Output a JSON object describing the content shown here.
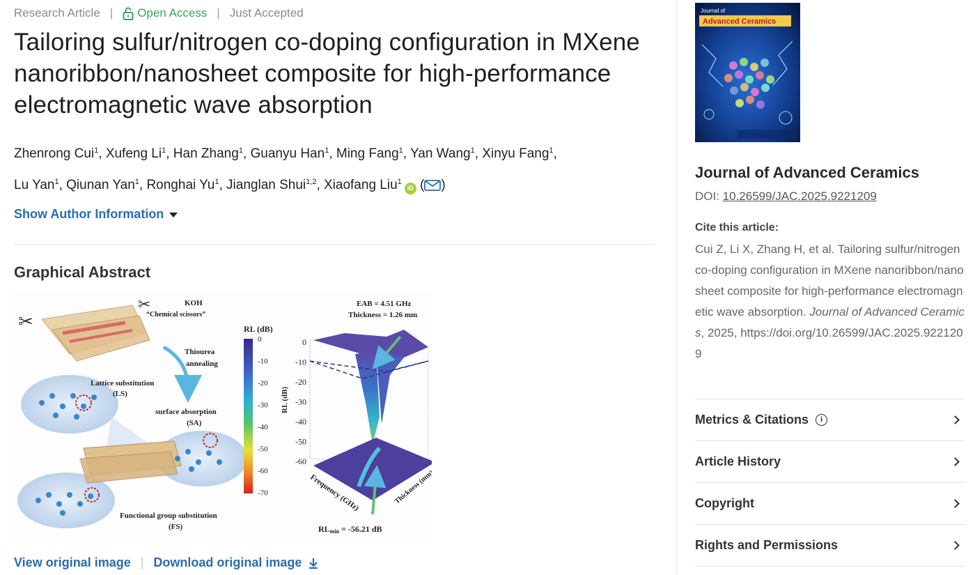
{
  "article_meta": {
    "type": "Research Article",
    "access": "Open Access",
    "status": "Just Accepted"
  },
  "title": "Tailoring sulfur/nitrogen co-doping configuration in MXene nanoribbon/nanosheet composite for high-performance electromagnetic wave absorption",
  "authors": [
    {
      "name": "Zhenrong Cui",
      "aff": "1"
    },
    {
      "name": "Xufeng Li",
      "aff": "1"
    },
    {
      "name": "Han Zhang",
      "aff": "1"
    },
    {
      "name": "Guanyu Han",
      "aff": "1"
    },
    {
      "name": "Ming Fang",
      "aff": "1"
    },
    {
      "name": "Yan Wang",
      "aff": "1"
    },
    {
      "name": "Xinyu Fang",
      "aff": "1"
    },
    {
      "name": "Lu Yan",
      "aff": "1"
    },
    {
      "name": "Qiunan Yan",
      "aff": "1"
    },
    {
      "name": "Ronghai Yu",
      "aff": "1"
    },
    {
      "name": "Jianglan Shui",
      "aff": "1,2"
    },
    {
      "name": "Xiaofang Liu",
      "aff": "1"
    }
  ],
  "orcid_label": "iD",
  "show_author_info": "Show Author Information",
  "graphical_abstract": {
    "heading": "Graphical Abstract",
    "labels": {
      "koh": "KOH",
      "scissors": "“Chemical scissors”",
      "thiourea": "Thiourea",
      "annealing": "annealing",
      "ls": "Lattice substitution",
      "ls_abbr": "(LS)",
      "sa": "surface absorption",
      "sa_abbr": "(SA)",
      "fs": "Functional group substitution",
      "fs_abbr": "(FS)",
      "eab": "EAB = 4.51 GHz",
      "thickness": "Thickness = 1.26 mm",
      "rl_title": "RL (dB)",
      "rl_axis": "RL (dB)",
      "freq_axis": "Frequency (GHz)",
      "thick_axis": "Thickness (mm)",
      "rlmin_prefix": "RL",
      "rlmin_sub": "min",
      "rlmin_value": " = -56.21 dB"
    },
    "colorbar_ticks": [
      "0",
      "-10",
      "-20",
      "-30",
      "-40",
      "-50",
      "-60",
      "-70"
    ],
    "zaxis_ticks": [
      "0",
      "-10",
      "-20",
      "-30",
      "-40",
      "-50",
      "-60"
    ]
  },
  "image_links": {
    "view": "View original image",
    "download": "Download original image"
  },
  "sidebar": {
    "cover": {
      "journal_small": "Journal of",
      "journal_big": "Advanced Ceramics"
    },
    "journal_name": "Journal of Advanced Ceramics",
    "doi_label": "DOI: ",
    "doi": "10.26599/JAC.2025.9221209",
    "cite_heading": "Cite this article:",
    "cite_plain": "Cui Z, Li X, Zhang H, et al. Tailoring sulfur/nitrogen co-doping configuration in MXene nanoribbon/nanosheet composite for high-performance electromagnetic wave absorption. ",
    "cite_journal": "Journal of Advanced Ceramics",
    "cite_tail": ", 2025, https://doi.org/10.26599/JAC.2025.9221209",
    "accordion": [
      {
        "label": "Metrics & Citations",
        "info": true
      },
      {
        "label": "Article History",
        "info": false
      },
      {
        "label": "Copyright",
        "info": false
      },
      {
        "label": "Rights and Permissions",
        "info": false
      }
    ]
  },
  "colors": {
    "link_blue": "#2b6cb0",
    "open_access_green": "#3aa35a",
    "orcid_green": "#a6ce39"
  }
}
